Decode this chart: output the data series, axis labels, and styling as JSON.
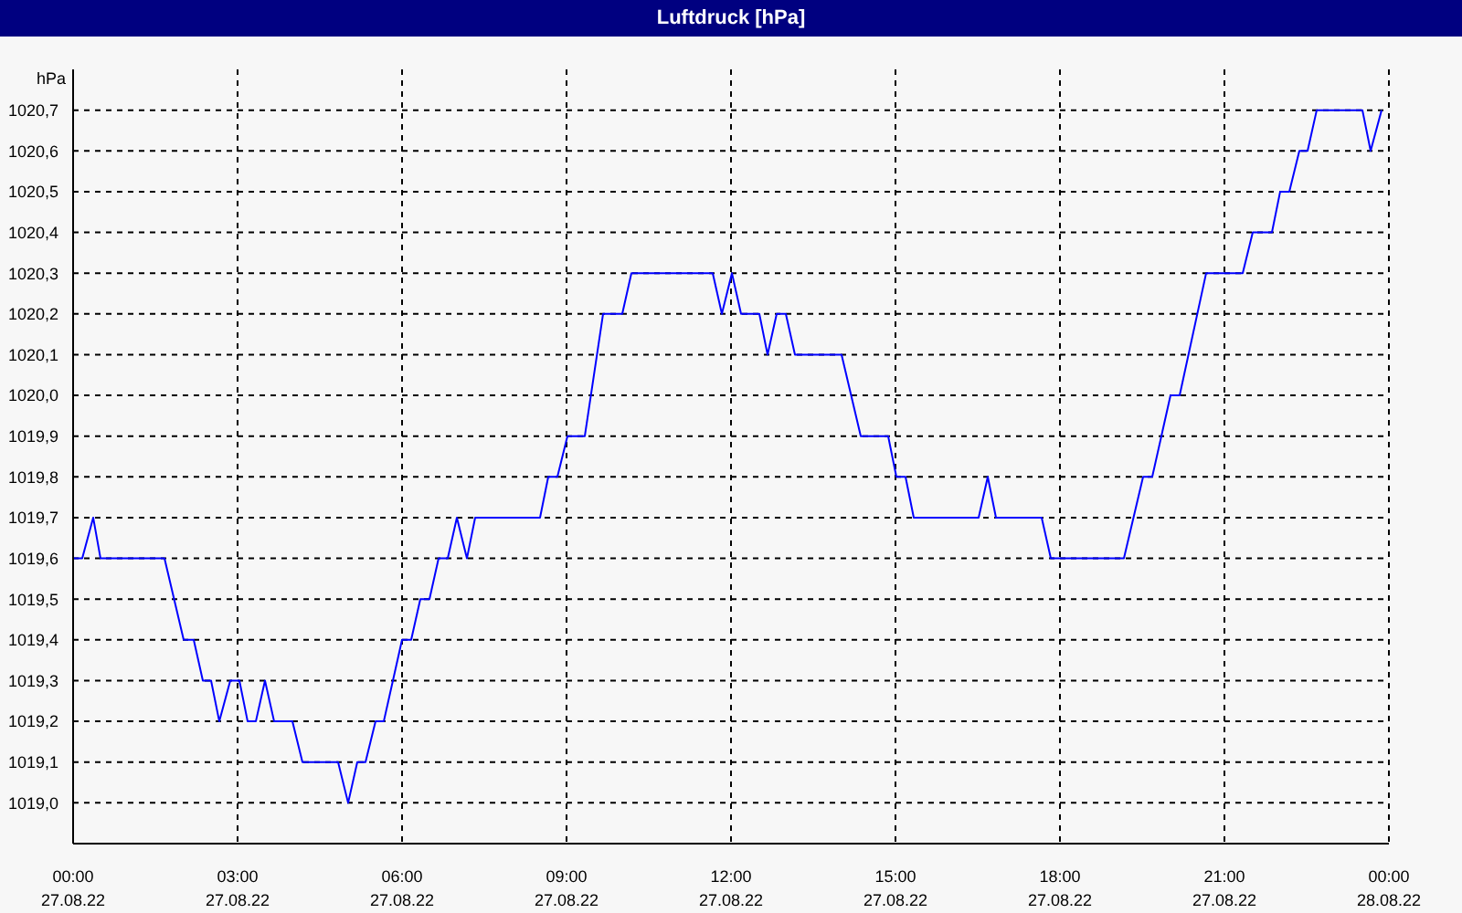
{
  "chart_data": {
    "type": "line",
    "title": "Luftdruck [hPa]",
    "ylabel": "hPa",
    "x": [
      "--08-27T00:00",
      "--08-27T00:10",
      "--08-27T00:22",
      "--08-27T00:30",
      "--08-27T01:40",
      "--08-27T02:01",
      "--08-27T02:12",
      "--08-27T02:22",
      "--08-27T02:31",
      "--08-27T02:40",
      "--08-27T02:52",
      "--08-27T03:02",
      "--08-27T03:11",
      "--08-27T03:20",
      "--08-27T03:30",
      "--08-27T03:40",
      "--08-27T04:00",
      "--08-27T04:11",
      "--08-27T04:50",
      "--08-27T05:01",
      "--08-27T05:11",
      "--08-27T05:20",
      "--08-27T05:31",
      "--08-27T05:40",
      "--08-27T06:00",
      "--08-27T06:10",
      "--08-27T06:20",
      "--08-27T06:30",
      "--08-27T06:40",
      "--08-27T06:50",
      "--08-27T07:00",
      "--08-27T07:11",
      "--08-27T07:20",
      "--08-27T08:31",
      "--08-27T08:40",
      "--08-27T08:50",
      "--08-27T09:01",
      "--08-27T09:20",
      "--08-27T09:40",
      "--08-27T10:01",
      "--08-27T10:11",
      "--08-27T11:40",
      "--08-27T11:50",
      "--08-27T12:01",
      "--08-27T12:11",
      "--08-27T12:31",
      "--08-27T12:40",
      "--08-27T12:50",
      "--08-27T13:00",
      "--08-27T13:10",
      "--08-27T14:01",
      "--08-27T14:22",
      "--08-27T14:52",
      "--08-27T15:01",
      "--08-27T15:11",
      "--08-27T15:20",
      "--08-27T16:31",
      "--08-27T16:41",
      "--08-27T16:50",
      "--08-27T17:40",
      "--08-27T17:50",
      "--08-27T19:10",
      "--08-27T19:31",
      "--08-27T19:41",
      "--08-27T20:01",
      "--08-27T20:11",
      "--08-27T20:40",
      "--08-27T21:20",
      "--08-27T21:31",
      "--08-27T21:52",
      "--08-27T22:01",
      "--08-27T22:11",
      "--08-27T22:22",
      "--08-27T22:31",
      "--08-27T22:41",
      "--08-27T23:31",
      "--08-27T23:40",
      "--08-27T23:52"
    ],
    "series": [
      {
        "color": "#0000ff",
        "values": [
          1019.6,
          1019.6,
          1019.7,
          1019.6,
          1019.6,
          1019.4,
          1019.4,
          1019.3,
          1019.3,
          1019.2,
          1019.3,
          1019.3,
          1019.2,
          1019.2,
          1019.3,
          1019.2,
          1019.2,
          1019.1,
          1019.1,
          1019.0,
          1019.1,
          1019.1,
          1019.2,
          1019.2,
          1019.4,
          1019.4,
          1019.5,
          1019.5,
          1019.6,
          1019.6,
          1019.7,
          1019.6,
          1019.7,
          1019.7,
          1019.8,
          1019.8,
          1019.9,
          1019.9,
          1020.2,
          1020.2,
          1020.3,
          1020.3,
          1020.2,
          1020.3,
          1020.2,
          1020.2,
          1020.1,
          1020.2,
          1020.2,
          1020.1,
          1020.1,
          1019.9,
          1019.9,
          1019.8,
          1019.8,
          1019.7,
          1019.7,
          1019.8,
          1019.7,
          1019.7,
          1019.6,
          1019.6,
          1019.8,
          1019.8,
          1020.0,
          1020.0,
          1020.3,
          1020.3,
          1020.4,
          1020.4,
          1020.5,
          1020.5,
          1020.6,
          1020.6,
          1020.7,
          1020.7,
          1020.6,
          1020.7
        ]
      }
    ],
    "xlim": [
      "--08-27T00:00",
      "--08-28T00:00"
    ],
    "xticks": [
      {
        "value": "--08-27T00:00",
        "label": "00:00\n27.08.22"
      },
      {
        "value": "--08-27T03:00",
        "label": "03:00\n27.08.22"
      },
      {
        "value": "--08-27T06:00",
        "label": "06:00\n27.08.22"
      },
      {
        "value": "--08-27T09:00",
        "label": "09:00\n27.08.22"
      },
      {
        "value": "--08-27T12:00",
        "label": "12:00\n27.08.22"
      },
      {
        "value": "--08-27T15:00",
        "label": "15:00\n27.08.22"
      },
      {
        "value": "--08-27T18:00",
        "label": "18:00\n27.08.22"
      },
      {
        "value": "--08-27T21:00",
        "label": "21:00\n27.08.22"
      },
      {
        "value": "--08-28T00:00",
        "label": "00:00\n28.08.22"
      }
    ],
    "ylim": [
      1018.9,
      1020.8
    ],
    "yticks": [
      {
        "value": 1019.0,
        "label": "1019,0"
      },
      {
        "value": 1019.1,
        "label": "1019,1"
      },
      {
        "value": 1019.2,
        "label": "1019,2"
      },
      {
        "value": 1019.3,
        "label": "1019,3"
      },
      {
        "value": 1019.4,
        "label": "1019,4"
      },
      {
        "value": 1019.5,
        "label": "1019,5"
      },
      {
        "value": 1019.6,
        "label": "1019,6"
      },
      {
        "value": 1019.7,
        "label": "1019,7"
      },
      {
        "value": 1019.8,
        "label": "1019,8"
      },
      {
        "value": 1019.9,
        "label": "1019,9"
      },
      {
        "value": 1020.0,
        "label": "1020,0"
      },
      {
        "value": 1020.1,
        "label": "1020,1"
      },
      {
        "value": 1020.2,
        "label": "1020,2"
      },
      {
        "value": 1020.3,
        "label": "1020,3"
      },
      {
        "value": 1020.4,
        "label": "1020,4"
      },
      {
        "value": 1020.5,
        "label": "1020,5"
      },
      {
        "value": 1020.6,
        "label": "1020,6"
      },
      {
        "value": 1020.7,
        "label": "1020,7"
      }
    ],
    "grid": true,
    "line_style": "solid"
  }
}
